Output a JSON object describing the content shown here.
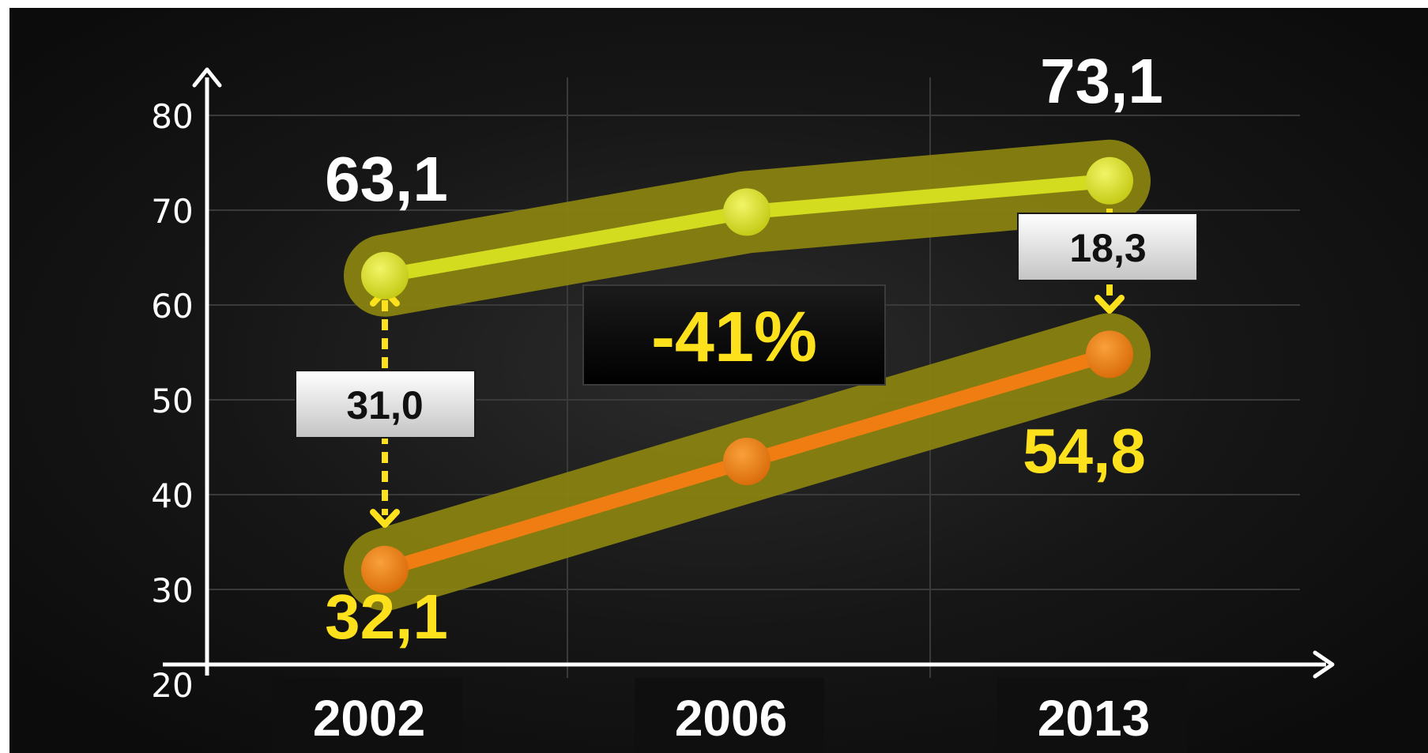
{
  "chart_data": {
    "type": "line",
    "categories": [
      "2002",
      "2006",
      "2013"
    ],
    "series": [
      {
        "values": [
          63.1,
          69.8,
          73.1
        ],
        "color": "#d4dc20"
      },
      {
        "values": [
          32.1,
          43.5,
          54.8
        ],
        "color": "#ef7d12"
      }
    ],
    "yticks": [
      "20",
      "30",
      "40",
      "50",
      "60",
      "70",
      "80"
    ],
    "ylim": [
      20,
      80
    ],
    "grid": true,
    "point_labels": {
      "top_first": "63,1",
      "top_last": "73,1",
      "bottom_first": "32,1",
      "bottom_last": "54,8"
    },
    "gap_labels": {
      "first": "31,0",
      "last": "18,3"
    },
    "annotation": "-41%",
    "colors": {
      "background": "#151515",
      "grid": "#3a3a3a",
      "axis": "#ffffff",
      "highlight": "#fde11d",
      "glow": "#8c8510"
    }
  }
}
